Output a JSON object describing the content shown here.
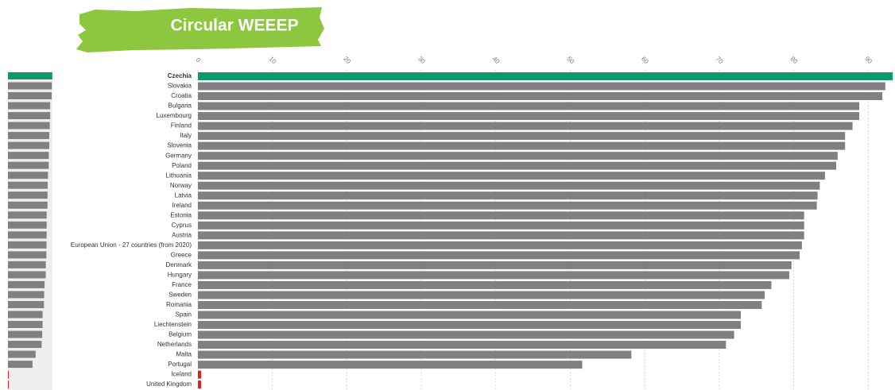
{
  "header": {
    "logo": "Circular WEEEP"
  },
  "chart_data": {
    "type": "bar",
    "orientation": "horizontal",
    "categories": [
      "Czechia",
      "Slovakia",
      "Croatia",
      "Bulgaria",
      "Luxembourg",
      "Finland",
      "Italy",
      "Slovenia",
      "Germany",
      "Poland",
      "Lithuania",
      "Norway",
      "Latvia",
      "Ireland",
      "Estonia",
      "Cyprus",
      "Austria",
      "European Union - 27 countries (from 2020)",
      "Greece",
      "Denmark",
      "Hungary",
      "France",
      "Sweden",
      "Romania",
      "Spain",
      "Liechtenstein",
      "Belgium",
      "Netherlands",
      "Malta",
      "Portugal",
      "Iceland",
      "United Kingdom"
    ],
    "values": [
      93.3,
      92.3,
      91.9,
      88.8,
      88.8,
      87.9,
      86.9,
      86.9,
      85.9,
      85.7,
      84.2,
      83.5,
      83.2,
      83.1,
      81.4,
      81.4,
      81.4,
      81.1,
      80.8,
      79.7,
      79.4,
      77.0,
      76.1,
      75.7,
      72.9,
      72.9,
      72.0,
      70.9,
      58.2,
      51.6,
      null,
      null
    ],
    "color": "#808080",
    "highlight_color": "#0a9a6e",
    "missing_color": "#e02020",
    "xlim": [
      0,
      93.6
    ],
    "xticks": [
      0,
      10,
      20,
      30,
      40,
      50,
      60,
      70,
      80,
      90
    ],
    "grid": true
  }
}
